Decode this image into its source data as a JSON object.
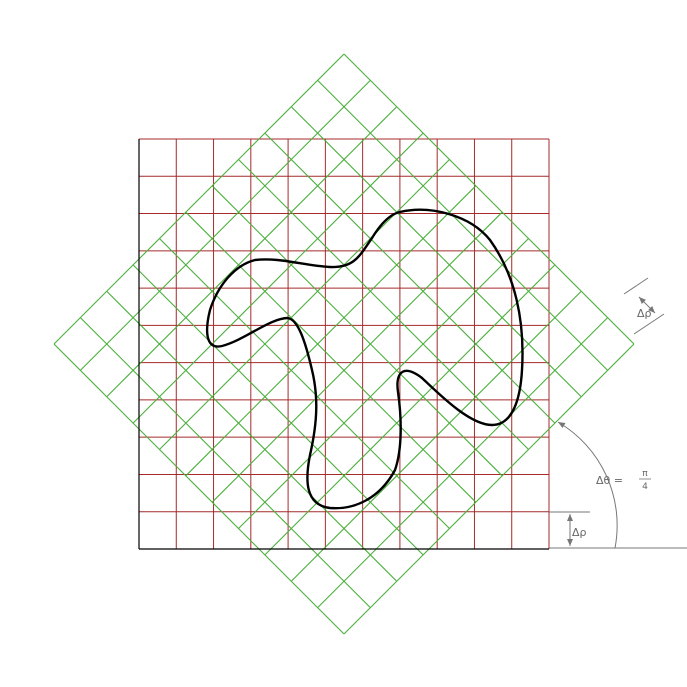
{
  "diagram": {
    "grid_cells": 11,
    "rotated_grid_cells": 11,
    "rotation_label": "Δθ = π/4",
    "theta_prefix": "Δθ = ",
    "theta_num": "π",
    "theta_den": "4",
    "rho_label_right": "Δρ",
    "rho_label_bottom": "Δρ"
  },
  "colors": {
    "square_grid": "#a52a2a",
    "rotated_grid": "#4caf3e",
    "curve": "#000000",
    "annotation": "#777777",
    "border": "#000000"
  }
}
